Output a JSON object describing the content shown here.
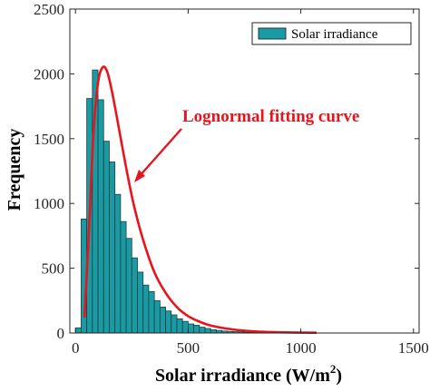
{
  "chart_data": {
    "type": "bar",
    "xlabel": "Solar irradiance (W/m",
    "xlabel_superscript": "2",
    "xlabel_close": ")",
    "ylabel": "Frequency",
    "xlim": [
      -25,
      1525
    ],
    "ylim": [
      0,
      2500
    ],
    "x_ticks": [
      0,
      500,
      1000,
      1500
    ],
    "y_ticks": [
      0,
      500,
      1000,
      1500,
      2000,
      2500
    ],
    "bin_width": 25,
    "bin_start": 0,
    "bar_color": "#1a9ba3",
    "bar_edge_color": "#1f3d40",
    "values": [
      40,
      880,
      1810,
      2030,
      1800,
      1480,
      1320,
      1070,
      860,
      730,
      580,
      470,
      370,
      320,
      250,
      200,
      170,
      140,
      110,
      90,
      70,
      60,
      45,
      35,
      25,
      20,
      15,
      12,
      10,
      8,
      6,
      5,
      4,
      3,
      2,
      2,
      1,
      1,
      1,
      1,
      1,
      1,
      1
    ],
    "fit_curve": {
      "name": "Lognormal fitting curve",
      "color": "#e8141c",
      "x": [
        40,
        60,
        80,
        100,
        120,
        140,
        160,
        180,
        200,
        230,
        260,
        300,
        350,
        400,
        450,
        500,
        550,
        600,
        700,
        800,
        900,
        1000,
        1070
      ],
      "y": [
        120,
        800,
        1550,
        1930,
        2050,
        2020,
        1880,
        1700,
        1510,
        1230,
        980,
        720,
        470,
        310,
        200,
        130,
        88,
        58,
        27,
        12,
        6,
        3,
        2
      ]
    },
    "legend": {
      "entries": [
        "Solar irradiance"
      ],
      "position": "top-right"
    },
    "annotation": {
      "text": "Lognormal fitting curve",
      "color": "#e8141c"
    },
    "grid": false
  }
}
